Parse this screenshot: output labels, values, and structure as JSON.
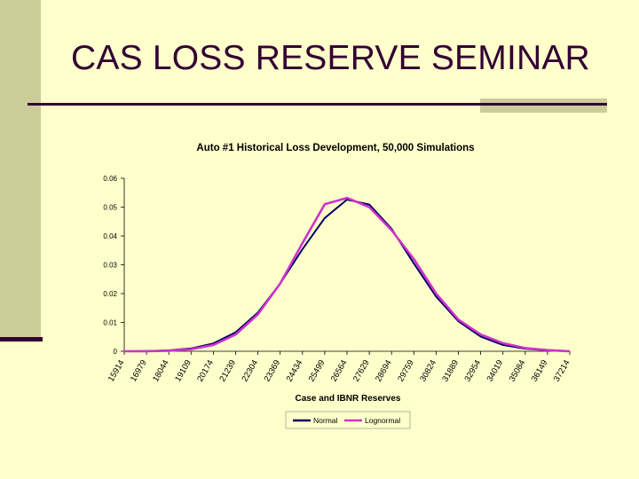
{
  "slide": {
    "title": "CAS LOSS RESERVE SEMINAR"
  },
  "colors": {
    "background": "#ffffcc",
    "accent_band": "#cccc99",
    "rule": "#330033",
    "normal_series": "#000066",
    "lognormal_series": "#cc33cc"
  },
  "chart_data": {
    "type": "line",
    "title": "Auto #1 Historical Loss Development, 50,000 Simulations",
    "xlabel": "Case and IBNR Reserves",
    "ylabel": "",
    "ylim": [
      0,
      0.06
    ],
    "yticks": [
      "0.06",
      "0.05",
      "0.04",
      "0.03",
      "0.02",
      "0.01",
      "0"
    ],
    "y_tick_values": [
      0.06,
      0.05,
      0.04,
      0.03,
      0.02,
      0.01,
      0
    ],
    "categories": [
      "15914",
      "16979",
      "18044",
      "19109",
      "20174",
      "21239",
      "22304",
      "23369",
      "24434",
      "25499",
      "26564",
      "27629",
      "28694",
      "29759",
      "30824",
      "31889",
      "32954",
      "34019",
      "35084",
      "36149",
      "37214"
    ],
    "legend": [
      "Normal",
      "Lognormal"
    ],
    "legend_position": "bottom",
    "series": [
      {
        "name": "Normal",
        "values": [
          0.0,
          0.0001,
          0.0003,
          0.001,
          0.0027,
          0.0066,
          0.0134,
          0.0235,
          0.0354,
          0.0462,
          0.0526,
          0.0509,
          0.0425,
          0.0305,
          0.019,
          0.0104,
          0.0051,
          0.0022,
          0.0009,
          0.0003,
          0.0
        ]
      },
      {
        "name": "Lognormal",
        "values": [
          0.0,
          0.0,
          0.0002,
          0.0007,
          0.0022,
          0.0058,
          0.0128,
          0.0235,
          0.0375,
          0.051,
          0.0532,
          0.05,
          0.042,
          0.032,
          0.02,
          0.011,
          0.0058,
          0.0028,
          0.0011,
          0.0004,
          0.0
        ]
      }
    ]
  }
}
